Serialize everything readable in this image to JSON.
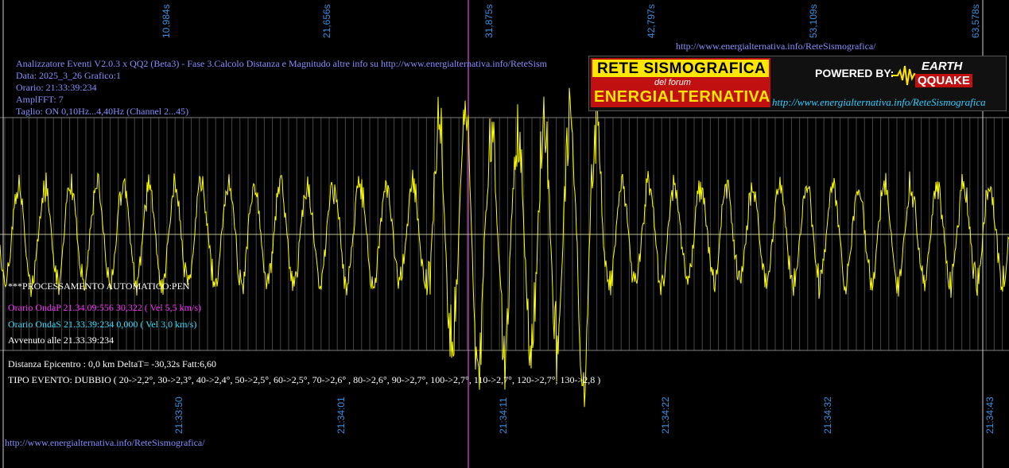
{
  "top_time_labels": [
    "10,984s",
    "21,656s",
    "31,875s",
    "42,797s",
    "53,109s",
    "63,578s"
  ],
  "bottom_time_labels": [
    "21:33:50",
    "21:34:01",
    "21:34:11",
    "21:34:22",
    "21:34:32",
    "21:34:43"
  ],
  "top_url": "http://www.energialternativa.info/ReteSismografica/",
  "header": {
    "line1": "Analizzatore Eventi V2.0.3 x QQ2 (Beta3) - Fase 3.Calcolo Distanza e Magnitudo altre info su http://www.energialternativa.info/ReteSism",
    "line2": "Data: 2025_3_26 Grafico:1",
    "line3": "Orario: 21:33:39:234",
    "line4": "AmplFFT: 7",
    "line5": "Taglio: ON 0,10Hz...4,40Hz       (Channel 2...45)"
  },
  "logo": {
    "title": "RETE SISMOGRAFICA",
    "subtitle": "del forum",
    "brand": "ENERGIALTERNATIVA",
    "powered": "POWERED BY:",
    "earth": "EARTH",
    "qq": "QQUAKE",
    "url": "http://www.energialternativa.info/ReteSismografica"
  },
  "status": {
    "processing": "***PROCESSAMENTO AUTOMATICO:PEN",
    "onda_p": "Orario OndaP 21.34.09:556  30,322 ( Vel 5,5 km/s)",
    "onda_s": "Orario OndaS 21.33.39:234  0,000 ( Vel 3,0 km/s)",
    "avvenuto": "Avvenuto alle 21.33.39:234",
    "distanza": "Distanza Epicentro : 0,0 km DeltaT= -30,32s  Fatt:6,60",
    "tipo": "TIPO EVENTO: DUBBIO ( 20->2,2°, 30->2,3°, 40->2,4°, 50->2,5°, 60->2,5°, 70->2,6° , 80->2,6°, 90->2,7°, 100->2,7°, 110->2,7°, 120->2,7°, 130->2,8 )"
  },
  "bottom_url": "http://www.energialternativa.info/ReteSismografica/",
  "colors": {
    "background": "#000000",
    "trace": "#ffff00",
    "grid": "#808080",
    "marker": "#ff66ff",
    "time_label": "#3a8fe0"
  }
}
